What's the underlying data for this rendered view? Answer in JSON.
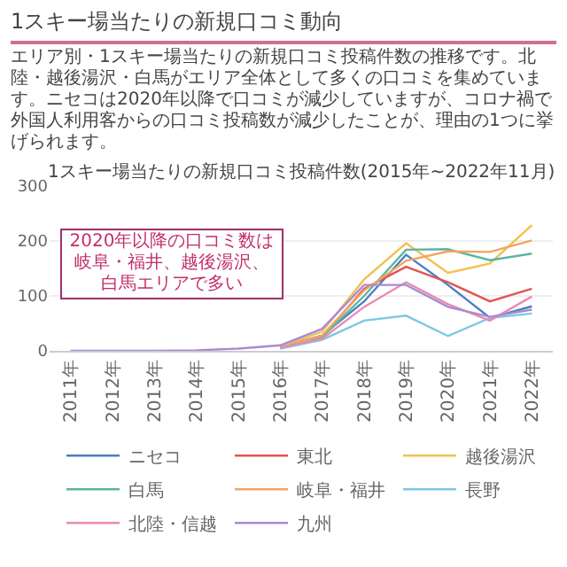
{
  "chart_data": {
    "type": "line",
    "title": "1スキー場当たりの新規口コミ動向",
    "subtitle": "エリア別・1スキー場当たりの新規口コミ投稿件数の推移です。北陸・越後湯沢・白馬がエリア全体として多くの口コミを集めています。ニセコは2020年以降で口コミが減少していますが、コロナ禍で外国人利用客からの口コミ投稿数が減少したことが、理由の1つに挙げられます。",
    "annotations": [
      "1スキー場当たりの新規口コミ投稿件数(2015年~2022年11月)",
      "2020年以降の口コミ数は岐阜・福井、越後湯沢、白馬エリアで多い"
    ],
    "categories": [
      "2011年",
      "2012年",
      "2013年",
      "2014年",
      "2015年",
      "2016年",
      "2017年",
      "2018年",
      "2019年",
      "2020年",
      "2021年",
      "2022年"
    ],
    "series": [
      {
        "name": "ニセコ",
        "color": "#4a7fc1",
        "values": [
          null,
          null,
          null,
          null,
          null,
          7,
          28,
          90,
          175,
          120,
          60,
          81
        ]
      },
      {
        "name": "東北",
        "color": "#e05555",
        "values": [
          null,
          null,
          null,
          null,
          null,
          5,
          25,
          113,
          153,
          125,
          90,
          113
        ]
      },
      {
        "name": "越後湯沢",
        "color": "#f2c14e",
        "values": [
          null,
          null,
          null,
          null,
          null,
          8,
          35,
          130,
          196,
          142,
          159,
          229
        ]
      },
      {
        "name": "白馬",
        "color": "#5bb5a2",
        "values": [
          null,
          null,
          null,
          null,
          null,
          5,
          25,
          100,
          184,
          185,
          165,
          177
        ]
      },
      {
        "name": "岐阜・福井",
        "color": "#f4a460",
        "values": [
          null,
          null,
          null,
          null,
          null,
          6,
          28,
          110,
          164,
          181,
          180,
          201
        ]
      },
      {
        "name": "長野",
        "color": "#7ec8e3",
        "values": [
          null,
          null,
          null,
          null,
          null,
          4,
          20,
          55,
          64,
          27,
          60,
          68
        ]
      },
      {
        "name": "北陸・信越",
        "color": "#e88bb0",
        "values": [
          null,
          null,
          null,
          null,
          null,
          6,
          22,
          80,
          125,
          85,
          55,
          99
        ]
      },
      {
        "name": "九州",
        "color": "#a98bd4",
        "values": [
          0,
          0,
          0,
          1,
          4,
          10,
          40,
          120,
          120,
          80,
          62,
          75
        ]
      }
    ],
    "ylim": [
      0,
      300
    ],
    "yticks": [
      0,
      100,
      200,
      300
    ],
    "grid": "y",
    "legend": "bottom",
    "marker": "none",
    "line_style": "solid"
  }
}
